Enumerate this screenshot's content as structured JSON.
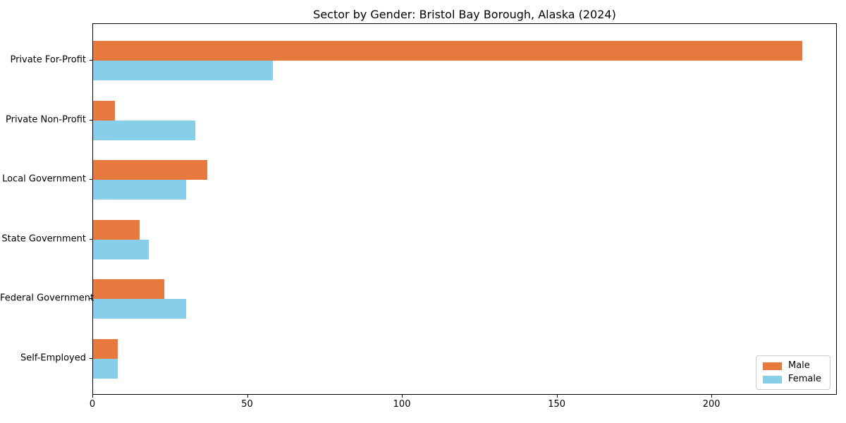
{
  "chart_data": {
    "type": "bar",
    "orientation": "horizontal",
    "title": "Sector by Gender: Bristol Bay Borough, Alaska (2024)",
    "categories": [
      "Private For-Profit",
      "Private Non-Profit",
      "Local Government",
      "State Government",
      "Federal Government",
      "Self-Employed"
    ],
    "series": [
      {
        "name": "Male",
        "color": "#e8793e",
        "values": [
          229,
          7,
          37,
          15,
          23,
          8
        ]
      },
      {
        "name": "Female",
        "color": "#87ceeb",
        "values": [
          58,
          33,
          30,
          18,
          30,
          8
        ]
      }
    ],
    "xlabel": "",
    "ylabel": "",
    "xlim": [
      0,
      240.5
    ],
    "xticks": [
      0,
      50,
      100,
      150,
      200
    ],
    "grid": false,
    "legend_position": "lower right",
    "spine_color": "#000000",
    "background_color": "#ffffff"
  }
}
